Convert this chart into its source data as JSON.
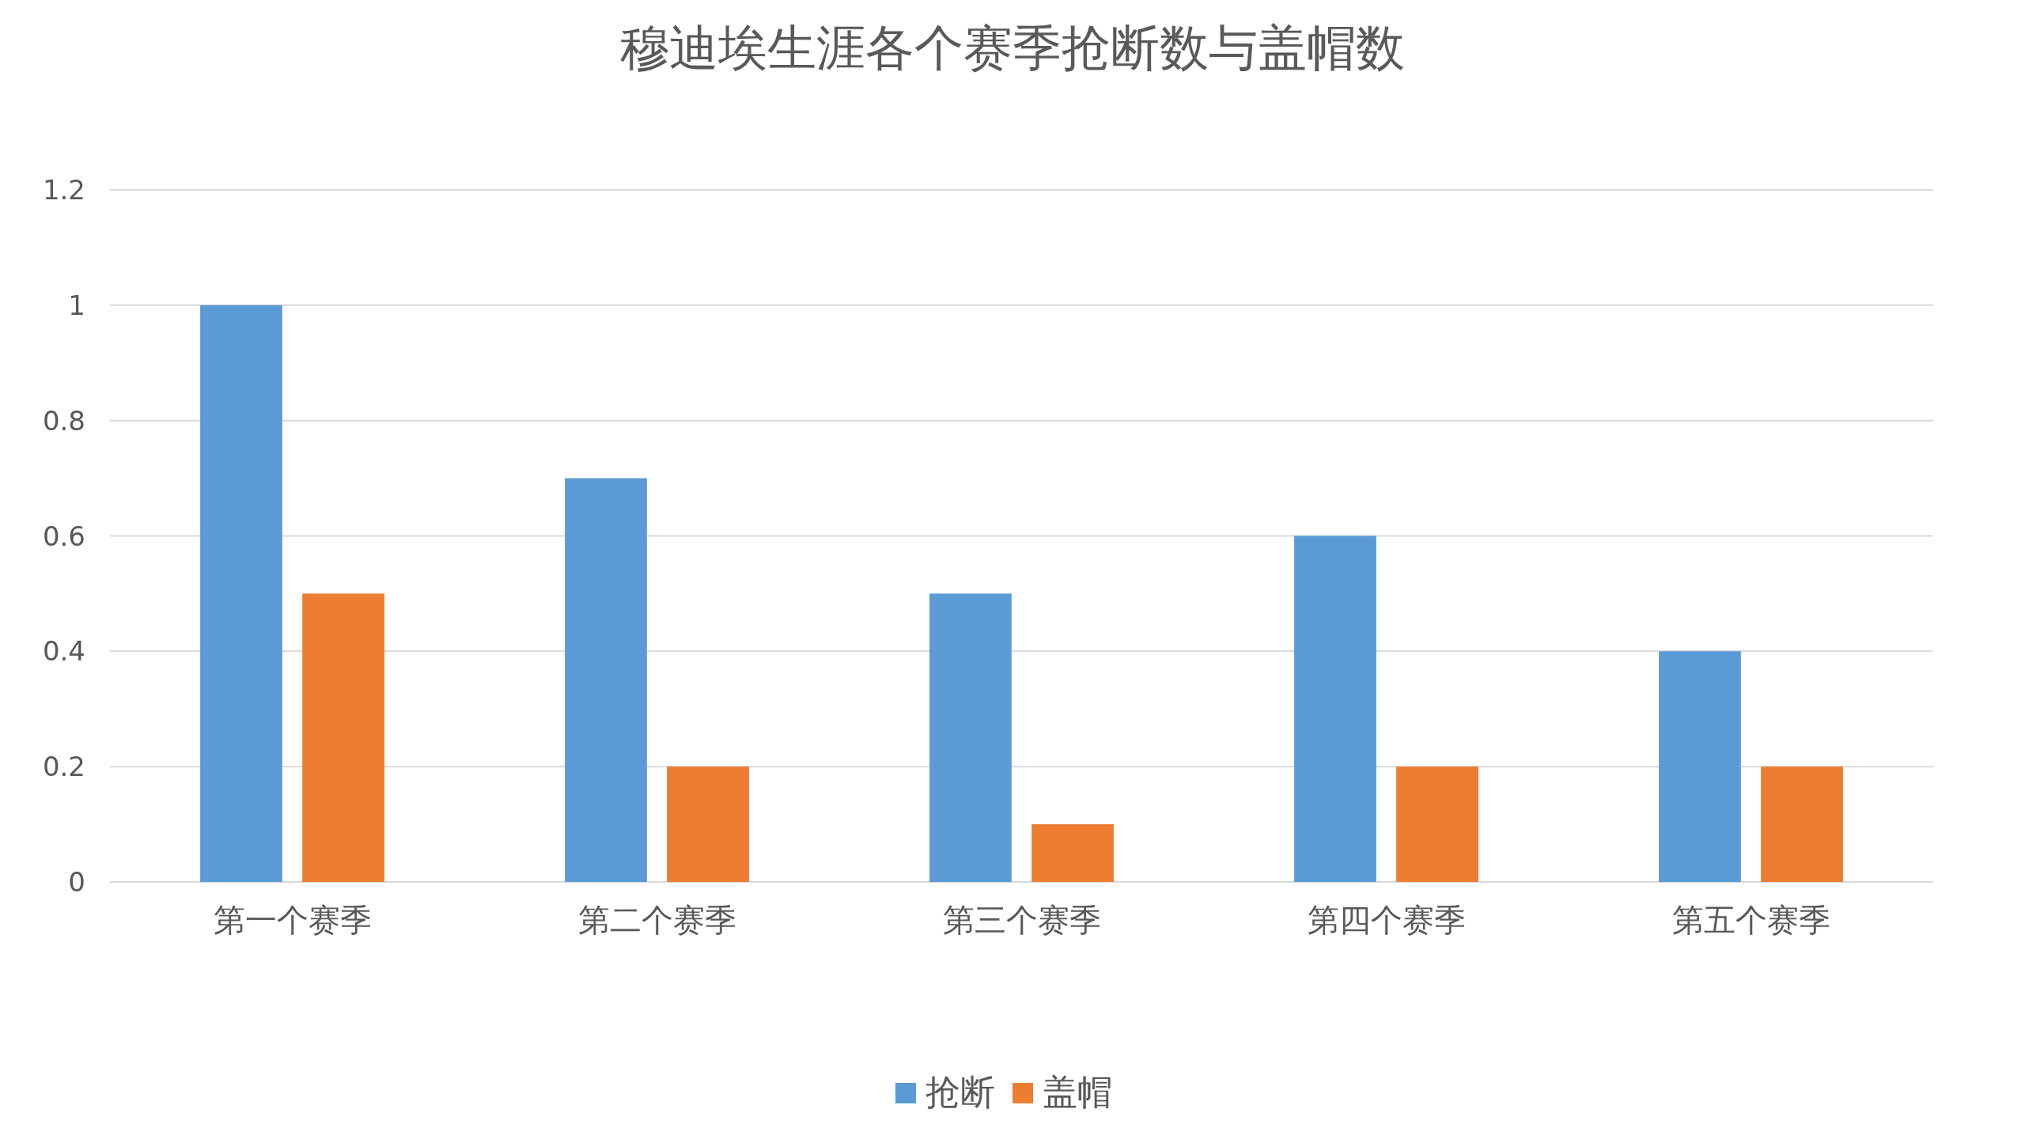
{
  "chart_data": {
    "type": "bar",
    "title": "穆迪埃生涯各个赛季抢断数与盖帽数",
    "categories": [
      "第一个赛季",
      "第二个赛季",
      "第三个赛季",
      "第四个赛季",
      "第五个赛季"
    ],
    "series": [
      {
        "name": "抢断",
        "color": "#5b9bd5",
        "values": [
          1,
          0.7,
          0.5,
          0.6,
          0.4
        ]
      },
      {
        "name": "盖帽",
        "color": "#ed7d31",
        "values": [
          0.5,
          0.2,
          0.1,
          0.2,
          0.2
        ]
      }
    ],
    "ylim": [
      0,
      1.2
    ],
    "yticks": [
      0,
      0.2,
      0.4,
      0.6,
      0.8,
      1,
      1.2
    ],
    "grid": "y",
    "legend": "bottom"
  }
}
